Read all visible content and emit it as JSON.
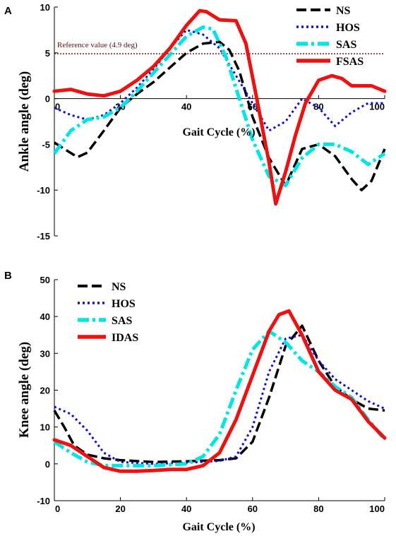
{
  "chart_data": [
    {
      "type": "line",
      "panel_label": "A",
      "xlabel": "Gait Cycle (%)",
      "ylabel": "Ankle angle (deg)",
      "xlim": [
        0,
        100
      ],
      "ylim": [
        -15,
        10
      ],
      "xticks": [
        "0",
        "20",
        "40",
        "60",
        "80",
        "100"
      ],
      "yticks": [
        "10",
        "5",
        "0",
        "-5",
        "-10",
        "-15"
      ],
      "grid": false,
      "legend_position": "top-right",
      "reference_line": {
        "value": 4.9,
        "label": "Reference value (4.9 deg)",
        "color": "#7a1f1f"
      },
      "series": [
        {
          "name": "NS",
          "color": "#000000",
          "style": "dashed",
          "x": [
            0,
            3,
            7,
            10,
            15,
            20,
            25,
            30,
            35,
            40,
            45,
            50,
            53,
            56,
            60,
            65,
            70,
            75,
            80,
            85,
            90,
            93,
            96,
            100
          ],
          "y": [
            -4.8,
            -5.5,
            -6.4,
            -5.9,
            -3.5,
            -1.0,
            0.5,
            1.8,
            3.4,
            5.0,
            6.0,
            6.2,
            5.3,
            3.0,
            -2.0,
            -6.5,
            -9.5,
            -5.5,
            -5.0,
            -6.3,
            -8.8,
            -10.0,
            -9.0,
            -5.5
          ]
        },
        {
          "name": "HOS",
          "color": "#1010cc",
          "style": "dotted",
          "x": [
            0,
            5,
            10,
            15,
            20,
            25,
            30,
            35,
            40,
            45,
            50,
            55,
            60,
            65,
            70,
            75,
            80,
            85,
            90,
            95,
            100
          ],
          "y": [
            -1.0,
            -1.8,
            -2.3,
            -1.8,
            -0.5,
            1.2,
            3.2,
            5.5,
            7.5,
            7.0,
            5.5,
            2.5,
            -0.5,
            -3.5,
            -2.5,
            0.0,
            -1.0,
            -3.0,
            -1.5,
            -0.5,
            -0.5
          ]
        },
        {
          "name": "SAS",
          "color": "#00e6e6",
          "style": "dashdot",
          "x": [
            0,
            5,
            10,
            15,
            20,
            25,
            30,
            35,
            40,
            45,
            48,
            52,
            56,
            60,
            65,
            70,
            75,
            80,
            85,
            90,
            95,
            100
          ],
          "y": [
            -6.0,
            -3.5,
            -2.3,
            -2.0,
            -1.0,
            0.8,
            2.8,
            4.8,
            6.8,
            7.8,
            7.6,
            4.5,
            0.0,
            -4.5,
            -8.5,
            -9.5,
            -6.5,
            -5.0,
            -5.0,
            -5.8,
            -7.2,
            -6.0
          ]
        },
        {
          "name": "FSAS",
          "color": "#ee1111",
          "style": "solid",
          "x": [
            0,
            5,
            10,
            15,
            20,
            25,
            30,
            35,
            40,
            44,
            46,
            50,
            55,
            58,
            61,
            65,
            67,
            70,
            73,
            76,
            80,
            84,
            87,
            90,
            93,
            96,
            100
          ],
          "y": [
            0.8,
            1.0,
            0.5,
            0.3,
            0.8,
            2.0,
            3.5,
            5.5,
            8.0,
            9.6,
            9.5,
            8.6,
            8.5,
            6.0,
            0.5,
            -7.0,
            -11.5,
            -8.0,
            -4.0,
            -0.5,
            2.0,
            2.5,
            2.2,
            1.4,
            1.4,
            1.4,
            0.8
          ]
        }
      ]
    },
    {
      "type": "line",
      "panel_label": "B",
      "xlabel": "Gait Cycle (%)",
      "ylabel": "Knee angle (deg)",
      "xlim": [
        0,
        100
      ],
      "ylim": [
        -10,
        50
      ],
      "xticks": [
        "0",
        "20",
        "40",
        "60",
        "80",
        "100"
      ],
      "yticks": [
        "50",
        "40",
        "30",
        "20",
        "10",
        "0",
        "-10"
      ],
      "grid": false,
      "legend_position": "top-left",
      "series": [
        {
          "name": "NS",
          "color": "#000000",
          "style": "dashed",
          "x": [
            0,
            3,
            6,
            10,
            15,
            20,
            30,
            40,
            50,
            55,
            60,
            65,
            70,
            75,
            80,
            85,
            90,
            95,
            100
          ],
          "y": [
            14.5,
            10.0,
            5.0,
            2.5,
            1.5,
            1.0,
            0.5,
            0.7,
            1.0,
            1.5,
            6.0,
            18.0,
            32.0,
            37.5,
            28.0,
            21.0,
            17.5,
            15.0,
            14.5
          ]
        },
        {
          "name": "HOS",
          "color": "#1010cc",
          "style": "dotted",
          "x": [
            0,
            5,
            10,
            15,
            20,
            30,
            40,
            50,
            55,
            60,
            65,
            70,
            75,
            80,
            85,
            90,
            95,
            100
          ],
          "y": [
            15.5,
            13.5,
            9.0,
            3.0,
            0.5,
            0.0,
            0.3,
            0.8,
            2.0,
            10.0,
            25.0,
            34.0,
            35.0,
            28.0,
            23.0,
            20.0,
            17.0,
            15.0
          ]
        },
        {
          "name": "SAS",
          "color": "#00e6e6",
          "style": "dashdot",
          "x": [
            0,
            5,
            10,
            15,
            20,
            30,
            40,
            45,
            50,
            55,
            60,
            65,
            70,
            75,
            80,
            85,
            90,
            95,
            100
          ],
          "y": [
            6.0,
            3.0,
            0.5,
            -0.5,
            -0.5,
            -0.5,
            0.0,
            2.0,
            8.0,
            20.0,
            31.0,
            36.0,
            33.0,
            28.0,
            25.0,
            21.0,
            18.0,
            12.0,
            6.5
          ]
        },
        {
          "name": "IDAS",
          "color": "#ee1111",
          "style": "solid",
          "x": [
            0,
            5,
            10,
            15,
            20,
            25,
            30,
            35,
            40,
            45,
            50,
            55,
            60,
            65,
            68,
            71,
            75,
            80,
            85,
            90,
            95,
            100
          ],
          "y": [
            6.5,
            5.0,
            2.0,
            -1.0,
            -2.0,
            -2.0,
            -1.8,
            -1.5,
            -1.5,
            -0.5,
            3.0,
            12.0,
            24.0,
            36.0,
            40.5,
            41.5,
            35.0,
            25.0,
            20.0,
            17.5,
            11.5,
            7.0
          ]
        }
      ]
    }
  ]
}
